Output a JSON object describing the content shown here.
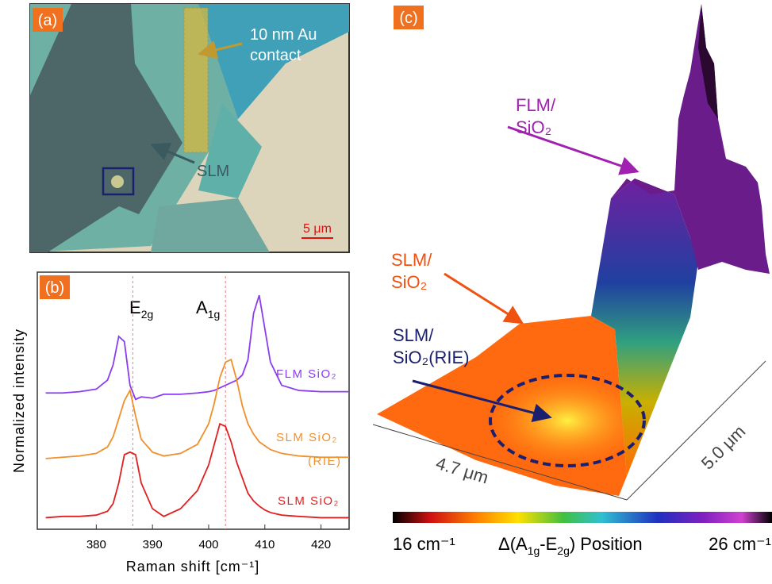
{
  "panel_a": {
    "label": "(a)",
    "contact_label": [
      "10 nm Au",
      "contact"
    ],
    "flake_label": "SLM",
    "scale_bar": "5 μm"
  },
  "chart_data": {
    "type": "line",
    "panel_label": "(b)",
    "x_label": "Raman shift [cm⁻¹]",
    "y_label": "Normalized intensity",
    "x": [
      371,
      374,
      377,
      380,
      382,
      383,
      384,
      385,
      386,
      387,
      388,
      390,
      392,
      395,
      398,
      400,
      401,
      402,
      403,
      404,
      405,
      406,
      407,
      408,
      409,
      410,
      411,
      413,
      416,
      420,
      425
    ],
    "series": [
      {
        "label": [
          "FLM SiO₂"
        ],
        "color": "#8b3cf0",
        "values": [
          5.3,
          5.3,
          5.35,
          5.45,
          5.8,
          6.4,
          7.5,
          7.3,
          5.6,
          5.05,
          5.15,
          5.1,
          5.25,
          5.25,
          5.3,
          5.35,
          5.4,
          5.5,
          5.6,
          5.7,
          5.8,
          6.0,
          6.6,
          8.4,
          9.1,
          7.8,
          6.5,
          5.6,
          5.4,
          5.35,
          5.35
        ]
      },
      {
        "label": [
          "SLM SiO₂",
          "(RIE)"
        ],
        "color": "#f0902a",
        "values": [
          2.75,
          2.8,
          2.85,
          2.95,
          3.2,
          3.6,
          4.3,
          5.0,
          5.4,
          4.4,
          3.5,
          3.0,
          2.85,
          2.95,
          3.3,
          4.1,
          4.9,
          5.9,
          6.5,
          6.6,
          5.8,
          4.8,
          4.1,
          3.7,
          3.4,
          3.25,
          3.1,
          2.95,
          2.85,
          2.8,
          2.8
        ]
      },
      {
        "label": [
          "SLM SiO₂"
        ],
        "color": "#e02020",
        "values": [
          0.45,
          0.5,
          0.5,
          0.55,
          0.7,
          1.0,
          1.8,
          2.9,
          3.0,
          2.9,
          1.8,
          0.8,
          0.5,
          0.8,
          1.5,
          2.5,
          3.3,
          4.1,
          4.0,
          3.4,
          2.6,
          2.0,
          1.4,
          1.1,
          0.9,
          0.75,
          0.65,
          0.55,
          0.5,
          0.45,
          0.45
        ]
      }
    ],
    "reference_lines": [
      386.5,
      403
    ],
    "annotations": [
      {
        "base": "E",
        "sub": "2g"
      },
      {
        "base": "A",
        "sub": "1g"
      }
    ],
    "xlim": [
      369.5,
      425
    ],
    "xticks": [
      380,
      390,
      400,
      410,
      420
    ],
    "ylim": [
      0,
      10
    ]
  },
  "panel_c": {
    "label": "(c)",
    "region_labels": [
      [
        "FLM/",
        "SiO₂"
      ],
      [
        "SLM/",
        "SiO₂"
      ],
      [
        "SLM/",
        "SiO₂(RIE)"
      ]
    ],
    "dimensions": [
      "4.7 μm",
      "5.0 μm"
    ],
    "colorbar": {
      "min_label": "16 cm⁻¹",
      "max_label": "26 cm⁻¹",
      "title": [
        "Δ(A",
        "1g",
        "-E",
        "2g",
        ") Position"
      ]
    }
  }
}
